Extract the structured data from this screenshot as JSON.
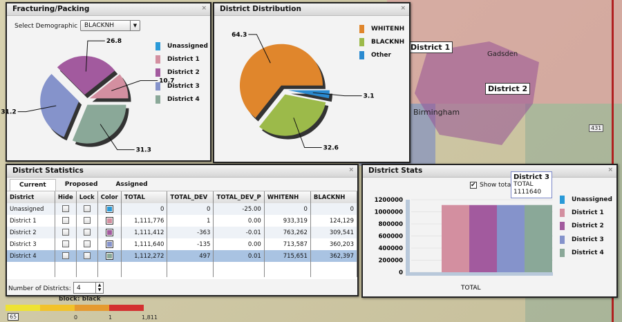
{
  "map": {
    "labels": [
      "District 1",
      "District 2"
    ],
    "cities": [
      "Gadsden",
      "Birmingham"
    ],
    "route_shields": [
      "65",
      "431"
    ],
    "scale": {
      "title": "block: black",
      "ticks": [
        "0",
        "1",
        "1,811"
      ]
    }
  },
  "fracturing": {
    "title": "Fracturing/Packing",
    "select_label": "Select Demographic",
    "select_value": "BLACKNH",
    "close_icon": "×",
    "chart_data": {
      "type": "pie",
      "title": "Fracturing/Packing",
      "labels": [
        "Unassigned",
        "District 1",
        "District 2",
        "District 3",
        "District 4"
      ],
      "values": [
        0,
        10.7,
        26.8,
        31.2,
        31.3
      ],
      "colors": [
        "#2a9ad8",
        "#d38fa0",
        "#a25a9e",
        "#8593cb",
        "#8aa898"
      ],
      "legend": "right"
    }
  },
  "distribution": {
    "title": "District Distribution",
    "close_icon": "×",
    "chart_data": {
      "type": "pie",
      "title": "District Distribution",
      "labels": [
        "WHITENH",
        "BLACKNH",
        "Other"
      ],
      "values": [
        64.3,
        32.6,
        3.1
      ],
      "colors": [
        "#e0862c",
        "#9cba4a",
        "#2a8ad0"
      ],
      "legend": "right"
    }
  },
  "stats": {
    "title": "District Statistics",
    "tabs": [
      "Current",
      "Proposed",
      "Assigned"
    ],
    "columns": [
      "District",
      "Hide",
      "Lock",
      "Color",
      "TOTAL",
      "TOTAL_DEV",
      "TOTAL_DEV_P",
      "WHITENH",
      "BLACKNH"
    ],
    "rows": [
      {
        "district": "Unassigned",
        "color": "#2a9ad8",
        "total": "0",
        "dev": "0",
        "devp": "-25.00",
        "white": "0",
        "black": "0"
      },
      {
        "district": "District 1",
        "color": "#d38fa0",
        "total": "1,111,776",
        "dev": "1",
        "devp": "0.00",
        "white": "933,319",
        "black": "124,129"
      },
      {
        "district": "District 2",
        "color": "#a25a9e",
        "total": "1,111,412",
        "dev": "-363",
        "devp": "-0.01",
        "white": "763,262",
        "black": "309,541"
      },
      {
        "district": "District 3",
        "color": "#8593cb",
        "total": "1,111,640",
        "dev": "-135",
        "devp": "0.00",
        "white": "713,587",
        "black": "360,203"
      },
      {
        "district": "District 4",
        "color": "#8aa898",
        "total": "1,112,272",
        "dev": "497",
        "devp": "0.01",
        "white": "715,651",
        "black": "362,397"
      }
    ],
    "num_districts_label": "Number of Districts:",
    "num_districts": "4"
  },
  "dstats": {
    "title": "District Stats",
    "show_total": "Show total",
    "tooltip": {
      "name": "District 3",
      "series": "TOTAL",
      "value": "1111640"
    },
    "chart_data": {
      "type": "bar",
      "categories": [
        "TOTAL"
      ],
      "xlabel": "TOTAL",
      "ylim": [
        0,
        1200000
      ],
      "yticks": [
        "1200000",
        "1000000",
        "800000",
        "600000",
        "400000",
        "200000",
        "0"
      ],
      "series": [
        {
          "name": "Unassigned",
          "values": [
            0
          ],
          "color": "#2a9ad8"
        },
        {
          "name": "District 1",
          "values": [
            1111776
          ],
          "color": "#d38fa0"
        },
        {
          "name": "District 2",
          "values": [
            1111412
          ],
          "color": "#a25a9e"
        },
        {
          "name": "District 3",
          "values": [
            1111640
          ],
          "color": "#8593cb"
        },
        {
          "name": "District 4",
          "values": [
            1112272
          ],
          "color": "#8aa898"
        }
      ],
      "legend": "right"
    }
  }
}
